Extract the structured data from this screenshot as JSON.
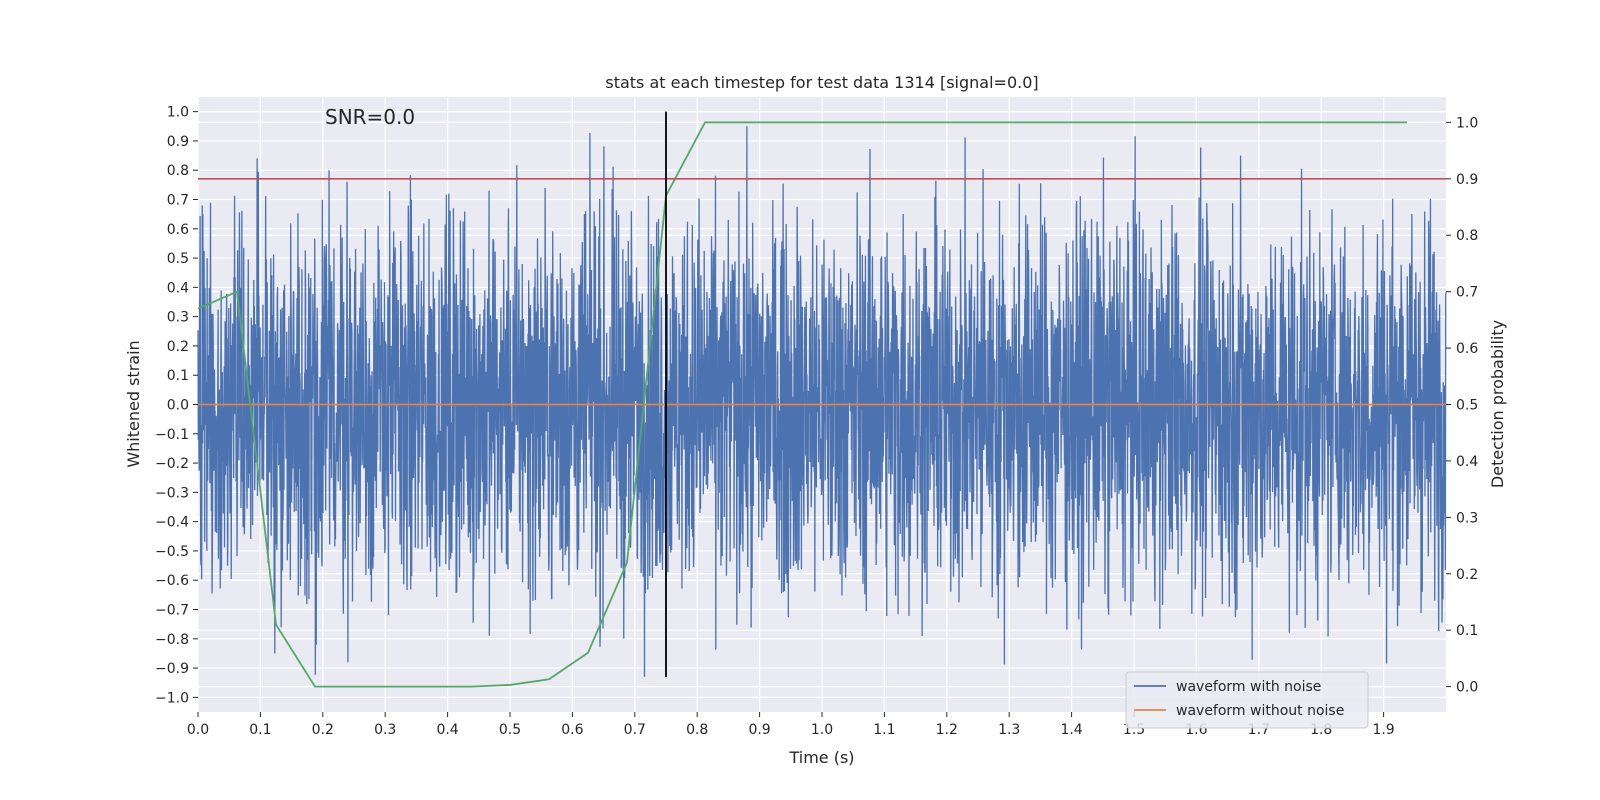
{
  "chart_data": {
    "type": "line",
    "title": "stats at each timestep for test data 1314 [signal=0.0]",
    "xlabel": "Time (s)",
    "ylabel": "Whitened strain",
    "ylabel_right": "Detection probability",
    "annotation": "SNR=0.0",
    "xlim": [
      0.0,
      2.0
    ],
    "ylim": [
      -1.05,
      1.05
    ],
    "ylim_right": [
      -0.045,
      1.045
    ],
    "x_ticks": [
      0.0,
      0.1,
      0.2,
      0.3,
      0.4,
      0.5,
      0.6,
      0.7,
      0.8,
      0.9,
      1.0,
      1.1,
      1.2,
      1.3,
      1.4,
      1.5,
      1.6,
      1.7,
      1.8,
      1.9
    ],
    "x_tick_labels": [
      "0.0",
      "0.1",
      "0.2",
      "0.3",
      "0.4",
      "0.5",
      "0.6",
      "0.7",
      "0.8",
      "0.9",
      "1.0",
      "1.1",
      "1.2",
      "1.3",
      "1.4",
      "1.5",
      "1.6",
      "1.7",
      "1.8",
      "1.9"
    ],
    "y_ticks": [
      1.0,
      0.9,
      0.8,
      0.7,
      0.6,
      0.5,
      0.4,
      0.3,
      0.2,
      0.1,
      0.0,
      -0.1,
      -0.2,
      -0.3,
      -0.4,
      -0.5,
      -0.6,
      -0.7,
      -0.8,
      -0.9,
      -1.0
    ],
    "y_tick_labels": [
      "1.0",
      "0.9",
      "0.8",
      "0.7",
      "0.6",
      "0.5",
      "0.4",
      "0.3",
      "0.2",
      "0.1",
      "0.0",
      "−0.1",
      "−0.2",
      "−0.3",
      "−0.4",
      "−0.5",
      "−0.6",
      "−0.7",
      "−0.8",
      "−0.9",
      "−1.0"
    ],
    "y_ticks_right": [
      1.0,
      0.9,
      0.8,
      0.7,
      0.6,
      0.5,
      0.4,
      0.3,
      0.2,
      0.1,
      0.0
    ],
    "y_tick_labels_right": [
      "1.0",
      "0.9",
      "0.8",
      "0.7",
      "0.6",
      "0.5",
      "0.4",
      "0.3",
      "0.2",
      "0.1",
      "0.0"
    ],
    "grid": true,
    "legend_position": "lower-right",
    "series": [
      {
        "name": "waveform with noise",
        "color": "#4c72b0",
        "axis": "left",
        "style": "noise",
        "x_range": [
          0.0,
          2.0
        ],
        "amplitude_range": [
          -0.93,
          1.0
        ]
      },
      {
        "name": "waveform without noise",
        "color": "#dd8452",
        "axis": "left",
        "x": [
          0.0,
          2.0
        ],
        "y": [
          0.0,
          0.0
        ]
      },
      {
        "color": "#55a868",
        "axis": "right",
        "x": [
          0.0,
          0.0625,
          0.125,
          0.1875,
          0.25,
          0.3125,
          0.375,
          0.4375,
          0.5,
          0.5625,
          0.625,
          0.6875,
          0.75,
          0.8125,
          0.875,
          0.9375,
          1.0,
          1.25,
          1.5,
          1.75,
          1.9375
        ],
        "y": [
          0.67,
          0.7,
          0.11,
          0.0,
          0.0,
          0.0,
          0.0,
          0.0,
          0.003,
          0.013,
          0.06,
          0.22,
          0.87,
          1.0,
          1.0,
          1.0,
          1.0,
          1.0,
          1.0,
          1.0,
          1.0
        ]
      },
      {
        "color": "#c44e52",
        "axis": "right",
        "x": [
          0.0,
          2.0
        ],
        "y": [
          0.9,
          0.9
        ]
      },
      {
        "color": "#000000",
        "axis": "left",
        "orientation": "vertical",
        "x": [
          0.75,
          0.75
        ],
        "y": [
          -0.93,
          1.0
        ]
      }
    ]
  }
}
